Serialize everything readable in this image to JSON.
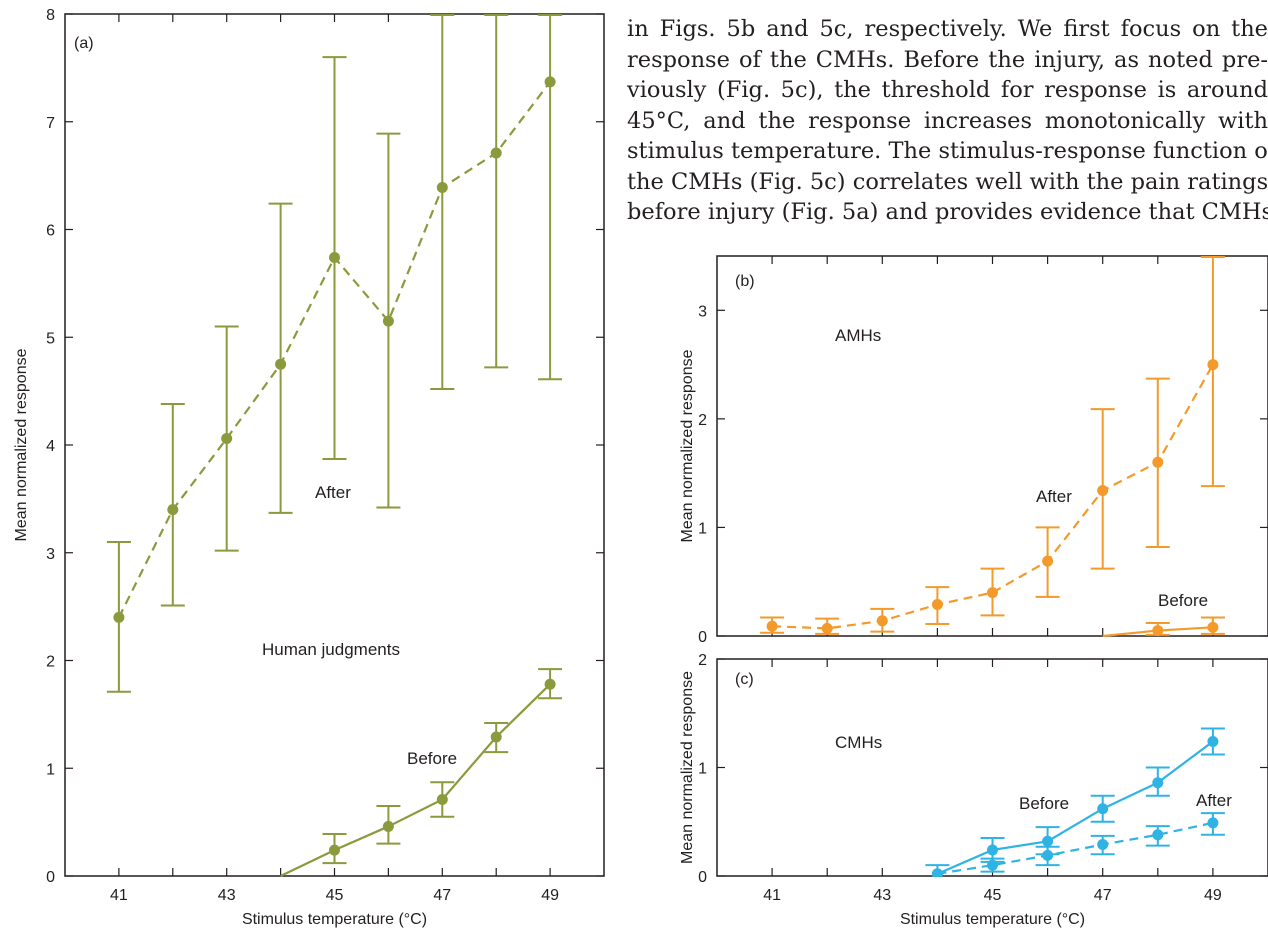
{
  "body_text": [
    "in Figs. 5b and 5c, respectively. We first focus on the",
    "response of the CMHs. Before the injury, as noted pre-",
    "viously (Fig. 5c), the threshold for response is around",
    "45°C, and the response increases monotonically with",
    "stimulus temperature. The stimulus-response function of",
    "the CMHs (Fig. 5c) correlates well with the pain ratings",
    "before injury (Fig. 5a) and provides evidence that CMHs"
  ],
  "colors": {
    "green": "#8a9a3c",
    "orange": "#f39a2a",
    "blue": "#2fb3e4",
    "axis": "#231f20"
  },
  "chart_data": [
    {
      "type": "line",
      "panel_label": "(a)",
      "annotation": "Human judgments",
      "xlabel": "Stimulus temperature (°C)",
      "ylabel": "Mean normalized response",
      "xlim": [
        40,
        50
      ],
      "ylim": [
        0,
        8
      ],
      "xticks": [
        41,
        43,
        45,
        47,
        49
      ],
      "yticks": [
        0,
        1,
        2,
        3,
        4,
        5,
        6,
        7,
        8
      ],
      "series": [
        {
          "label": "After",
          "style": "dashed",
          "color": "green",
          "x": [
            41,
            42,
            43,
            44,
            45,
            46,
            47,
            48,
            49
          ],
          "y": [
            2.4,
            3.4,
            4.06,
            4.75,
            5.74,
            5.15,
            6.39,
            6.71,
            7.37
          ],
          "err_low": [
            1.71,
            2.51,
            3.02,
            3.37,
            3.87,
            3.42,
            4.52,
            4.72,
            4.61
          ],
          "err_high": [
            3.1,
            4.38,
            5.1,
            6.24,
            7.6,
            6.89,
            8.0,
            8.0,
            8.0
          ]
        },
        {
          "label": "Before",
          "style": "solid",
          "color": "green",
          "x": [
            44,
            45,
            46,
            47,
            48,
            49
          ],
          "y": [
            0,
            0.24,
            0.46,
            0.71,
            1.29,
            1.78
          ],
          "err_low": [
            null,
            0.12,
            0.3,
            0.55,
            1.15,
            1.65
          ],
          "err_high": [
            null,
            0.39,
            0.65,
            0.87,
            1.42,
            1.92
          ]
        }
      ]
    },
    {
      "type": "line",
      "panel_label": "(b)",
      "annotation": "AMHs",
      "ylabel": "Mean normalized response",
      "xlim": [
        40,
        50
      ],
      "ylim": [
        0,
        3.5
      ],
      "xticks": [
        41,
        43,
        45,
        47,
        49
      ],
      "yticks": [
        0,
        1,
        2,
        3
      ],
      "series": [
        {
          "label": "After",
          "style": "dashed",
          "color": "orange",
          "x": [
            41,
            42,
            43,
            44,
            45,
            46,
            47,
            48,
            49
          ],
          "y": [
            0.09,
            0.07,
            0.14,
            0.29,
            0.4,
            0.69,
            1.34,
            1.6,
            2.5
          ],
          "err_low": [
            0.03,
            0.02,
            0.04,
            0.11,
            0.19,
            0.36,
            0.62,
            0.82,
            1.38
          ],
          "err_high": [
            0.17,
            0.16,
            0.25,
            0.45,
            0.62,
            1.0,
            2.09,
            2.37,
            3.5
          ]
        },
        {
          "label": "Before",
          "style": "solid",
          "color": "orange",
          "x": [
            47,
            48,
            49
          ],
          "y": [
            0,
            0.05,
            0.08
          ],
          "err_low": [
            null,
            0.01,
            0.02
          ],
          "err_high": [
            null,
            0.12,
            0.17
          ]
        }
      ]
    },
    {
      "type": "line",
      "panel_label": "(c)",
      "annotation": "CMHs",
      "xlabel": "Stimulus temperature (°C)",
      "ylabel": "Mean normalized response",
      "xlim": [
        40,
        50
      ],
      "ylim": [
        0,
        2
      ],
      "xticks": [
        41,
        43,
        45,
        47,
        49
      ],
      "yticks": [
        0,
        1,
        2
      ],
      "series": [
        {
          "label": "Before",
          "style": "solid",
          "color": "blue",
          "x": [
            44,
            45,
            46,
            47,
            48,
            49
          ],
          "y": [
            0.02,
            0.24,
            0.32,
            0.62,
            0.86,
            1.24
          ],
          "err_low": [
            null,
            0.13,
            0.2,
            0.5,
            0.74,
            1.12
          ],
          "err_high": [
            0.1,
            0.35,
            0.45,
            0.74,
            1.0,
            1.36
          ]
        },
        {
          "label": "After",
          "style": "dashed",
          "color": "blue",
          "x": [
            44,
            45,
            46,
            47,
            48,
            49
          ],
          "y": [
            0.02,
            0.1,
            0.19,
            0.29,
            0.38,
            0.49
          ],
          "err_low": [
            null,
            0.04,
            0.1,
            0.2,
            0.28,
            0.38
          ],
          "err_high": [
            null,
            0.16,
            0.27,
            0.37,
            0.46,
            0.58
          ]
        }
      ]
    }
  ]
}
